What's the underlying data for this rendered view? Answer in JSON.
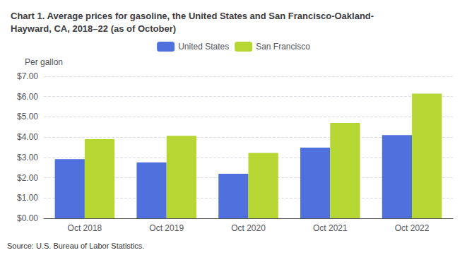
{
  "chart_data": {
    "type": "bar",
    "title": "Chart 1. Average prices for gasoline, the United States and San Francisco-Oakland-\nHayward, CA, 2018–22 (as of October)",
    "ylabel": "Per gallon",
    "source": "Source: U.S. Bureau of Labor Statistics.",
    "categories": [
      "Oct 2018",
      "Oct 2019",
      "Oct 2020",
      "Oct 2021",
      "Oct 2022"
    ],
    "series": [
      {
        "name": "United States",
        "values": [
          2.92,
          2.75,
          2.19,
          3.48,
          4.1
        ]
      },
      {
        "name": "San Francisco",
        "values": [
          3.9,
          4.07,
          3.22,
          4.7,
          6.15
        ]
      }
    ],
    "ylim": [
      0,
      7.0
    ],
    "yticks": [
      {
        "value": 0,
        "label": "$0.00"
      },
      {
        "value": 1,
        "label": "$1.00"
      },
      {
        "value": 2,
        "label": "$2.00"
      },
      {
        "value": 3,
        "label": "$3.00"
      },
      {
        "value": 4,
        "label": "$4.00"
      },
      {
        "value": 5,
        "label": "$5.00"
      },
      {
        "value": 6,
        "label": "$6.00"
      },
      {
        "value": 7,
        "label": "$7.00"
      }
    ],
    "grid": true,
    "legend": "top"
  }
}
